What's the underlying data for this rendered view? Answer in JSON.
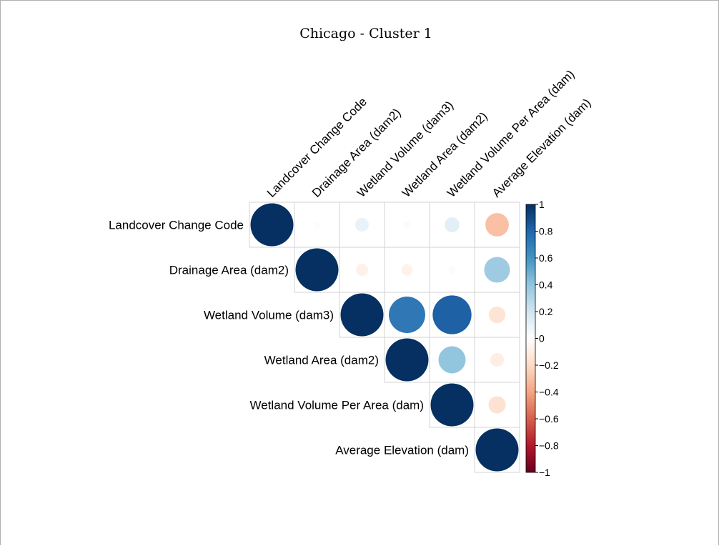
{
  "chart_data": {
    "type": "heatmap",
    "subtype": "correlation-upper-triangle-circles",
    "title": "Chicago - Cluster 1",
    "variables": [
      "Landcover Change Code",
      "Drainage Area (dam2)",
      "Wetland Volume (dam3)",
      "Wetland Area (dam2)",
      "Wetland Volume Per Area (dam)",
      "Average Elevation (dam)"
    ],
    "matrix": [
      [
        1,
        0.02,
        0.1,
        -0.03,
        0.12,
        -0.3
      ],
      [
        0.02,
        1,
        -0.08,
        -0.07,
        -0.03,
        0.36
      ],
      [
        0.1,
        -0.08,
        1,
        0.72,
        0.82,
        -0.15
      ],
      [
        -0.03,
        -0.07,
        0.72,
        1,
        0.4,
        -0.1
      ],
      [
        0.12,
        -0.03,
        0.82,
        0.4,
        1,
        -0.16
      ],
      [
        -0.3,
        0.36,
        -0.15,
        -0.1,
        -0.16,
        1
      ]
    ],
    "colorbar": {
      "range": [
        -1,
        1
      ],
      "ticks": [
        "1",
        "0.8",
        "0.6",
        "0.4",
        "0.2",
        "0",
        "−0.2",
        "−0.4",
        "−0.6",
        "−0.8",
        "−1"
      ],
      "colors": [
        "#67001F",
        "#B2182B",
        "#D6604D",
        "#F4A582",
        "#FDDBC7",
        "#FFFFFF",
        "#D1E5F0",
        "#92C5DE",
        "#4393C3",
        "#2166AC",
        "#053061"
      ]
    },
    "grid": true
  }
}
